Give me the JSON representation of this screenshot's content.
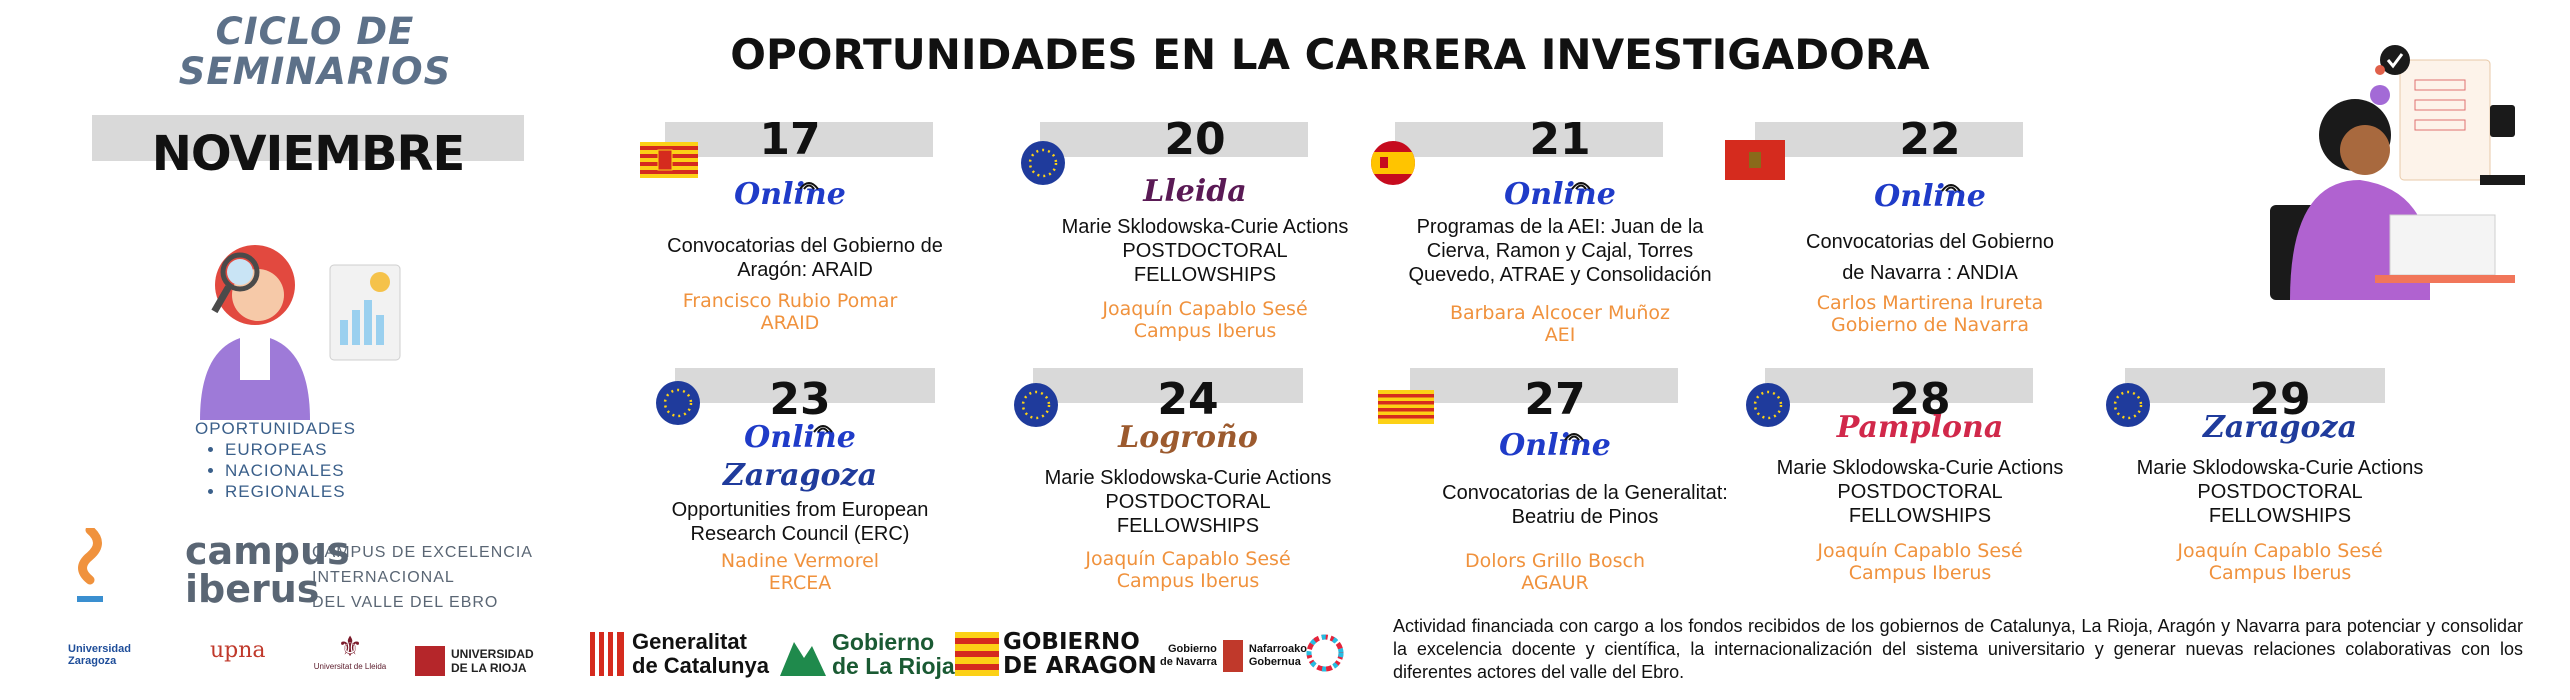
{
  "header": {
    "series_title_line1": "CICLO DE",
    "series_title_line2": "SEMINARIOS",
    "month": "NOVIEMBRE",
    "main_title": "OPORTUNIDADES EN  LA CARRERA INVESTIGADORA"
  },
  "opportunities": {
    "heading": "OPORTUNIDADES",
    "items": [
      "EUROPEAS",
      "NACIONALES",
      "REGIONALES"
    ]
  },
  "campus": {
    "name_line1": "campus",
    "name_line2": "iberus",
    "sub_line1": "CAMPUS DE EXCELENCIA",
    "sub_line2": "INTERNACIONAL",
    "sub_line3": "DEL VALLE DEL EBRO"
  },
  "universities": {
    "zaragoza": "Universidad Zaragoza",
    "upna": "upna",
    "lleida": "Universitat de Lleida",
    "rioja_line1": "UNIVERSIDAD",
    "rioja_line2": "DE LA RIOJA"
  },
  "governments": {
    "catalunya_line1": "Generalitat",
    "catalunya_line2": "de Catalunya",
    "rioja_line1": "Gobierno",
    "rioja_line2": "de La Rioja",
    "aragon_line1": "GOBIERNO",
    "aragon_line2": "DE ARAGON",
    "navarra_line1": "Gobierno",
    "navarra_line2": "de Navarra",
    "navarra_eu_line1": "Nafarroako",
    "navarra_eu_line2": "Gobernua"
  },
  "funding_text": "Actividad financiada con cargo a los fondos recibidos de los gobiernos de Catalunya, La Rioja, Aragón y Navarra para potenciar y consolidar la excelencia docente y científica, la internacionalización del sistema universitario y generar nuevas relaciones colaborativas con los diferentes actores del valle del Ebro.",
  "events": [
    {
      "day": "17",
      "place": "Online",
      "topic": [
        "Convocatorias del Gobierno de",
        "Aragón: ARAID"
      ],
      "speaker": [
        "Francisco Rubio Pomar",
        "ARAID"
      ]
    },
    {
      "day": "20",
      "place": "Lleida",
      "topic": [
        "Marie Sklodowska-Curie Actions",
        "POSTDOCTORAL",
        "FELLOWSHIPS"
      ],
      "speaker": [
        "Joaquín Capablo Sesé",
        "Campus Iberus"
      ]
    },
    {
      "day": "21",
      "place": "Online",
      "topic": [
        "Programas de la AEI: Juan de la",
        "Cierva, Ramon y Cajal, Torres",
        "Quevedo, ATRAE y Consolidación"
      ],
      "speaker": [
        "Barbara Alcocer Muñoz",
        "AEI"
      ]
    },
    {
      "day": "22",
      "place": "Online",
      "topic": [
        "Convocatorias del Gobierno",
        "de Navarra : ANDIA"
      ],
      "speaker": [
        "Carlos Martirena Irureta",
        "Gobierno de Navarra"
      ]
    },
    {
      "day": "23",
      "place": "Online",
      "place2": "Zaragoza",
      "topic": [
        "Opportunities from European",
        "Research Council (ERC)"
      ],
      "speaker": [
        "Nadine Vermorel",
        "ERCEA"
      ]
    },
    {
      "day": "24",
      "place": "Logroño",
      "topic": [
        "Marie Sklodowska-Curie Actions",
        "POSTDOCTORAL",
        "FELLOWSHIPS"
      ],
      "speaker": [
        "Joaquín Capablo Sesé",
        "Campus Iberus"
      ]
    },
    {
      "day": "27",
      "place": "Online",
      "topic": [
        "Convocatorias de la Generalitat:",
        "Beatriu de Pinos"
      ],
      "speaker": [
        "Dolors Grillo Bosch",
        "AGAUR"
      ]
    },
    {
      "day": "28",
      "place": "Pamplona",
      "topic": [
        "Marie Sklodowska-Curie Actions",
        "POSTDOCTORAL",
        "FELLOWSHIPS"
      ],
      "speaker": [
        "Joaquín Capablo Sesé",
        "Campus Iberus"
      ]
    },
    {
      "day": "29",
      "place": "Zaragoza",
      "topic": [
        "Marie Sklodowska-Curie Actions",
        "POSTDOCTORAL",
        "FELLOWSHIPS"
      ],
      "speaker": [
        "Joaquín Capablo Sesé",
        "Campus Iberus"
      ]
    }
  ],
  "colors": {
    "speaker": "#f0923d",
    "online": "#1f3bc8",
    "band": "#d9d9d9",
    "series_title": "#5d7189"
  }
}
